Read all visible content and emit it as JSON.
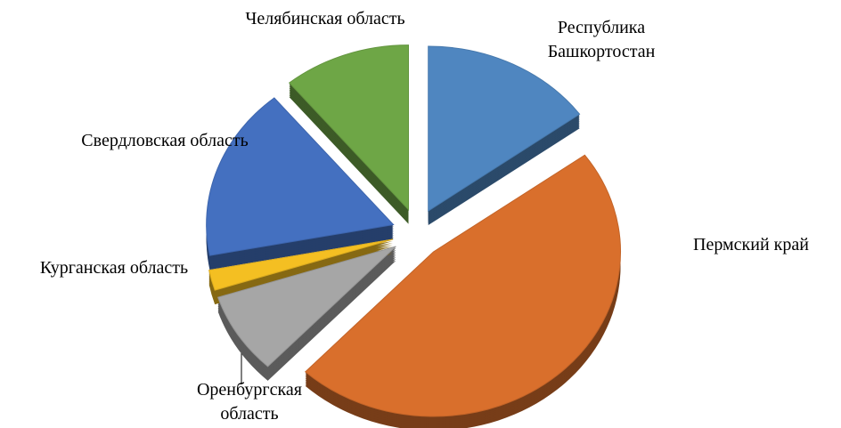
{
  "chart_data": {
    "type": "pie",
    "categories": [
      "Республика Башкортостан",
      "Пермский край",
      "Оренбургская область",
      "Курганская область",
      "Свердловская область",
      "Челябинская область"
    ],
    "values": [
      15,
      47,
      8,
      2,
      17,
      11
    ],
    "colors": [
      "#4f86c0",
      "#d96f2c",
      "#a6a6a6",
      "#f4bf22",
      "#4470c0",
      "#6ea646"
    ]
  }
}
